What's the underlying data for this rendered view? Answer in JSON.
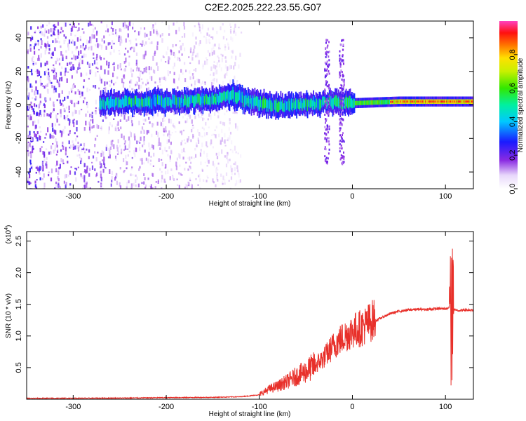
{
  "title": "C2E2.2025.222.23.55.G07",
  "colors": {
    "snr_line": "#e8302a",
    "frame": "#000000",
    "background": "#ffffff"
  },
  "chart_data": [
    {
      "type": "heatmap",
      "title": "C2E2.2025.222.23.55.G07",
      "xlabel": "Height of straight line (km)",
      "ylabel": "Frequency (Hz)",
      "xlim": [
        -350,
        130
      ],
      "ylim": [
        -50,
        50
      ],
      "x_ticks": [
        -300,
        -200,
        -100,
        0,
        100
      ],
      "x_tick_labels": [
        "-300",
        "-200",
        "-100",
        "0",
        "100"
      ],
      "y_ticks": [
        -40,
        -20,
        0,
        20,
        40
      ],
      "y_tick_labels": [
        "-40",
        "-20",
        "0",
        "20",
        "40"
      ],
      "colorbar": {
        "label": "Normalized spectral amplitude",
        "range": [
          0,
          1
        ],
        "ticks": [
          0.0,
          0.2,
          0.4,
          0.6,
          0.8
        ],
        "tick_labels": [
          "0.0",
          "0.2",
          "0.4",
          "0.6",
          "0.8"
        ],
        "colormap": "rainbow (white-violet-blue-cyan-green-yellow-red-magenta)"
      },
      "features": {
        "noise_region_x": [
          -350,
          -120
        ],
        "main_band_center_hz": [
          [
            -270,
            1
          ],
          [
            -200,
            2
          ],
          [
            -150,
            3
          ],
          [
            -130,
            6
          ],
          [
            -110,
            2
          ],
          [
            -90,
            0
          ],
          [
            -70,
            -1
          ],
          [
            -40,
            1
          ],
          [
            -20,
            2
          ],
          [
            0,
            1
          ],
          [
            50,
            2
          ],
          [
            100,
            2
          ],
          [
            130,
            2
          ]
        ],
        "vertical_streaks_x": [
          -28,
          -12
        ],
        "vertical_streak_range_hz": [
          -35,
          40
        ]
      }
    },
    {
      "type": "line",
      "xlabel": "Height of straight line (km)",
      "ylabel": "SNR (10 * v/v)",
      "y_multiplier_label": "(x10",
      "y_multiplier_exponent": "4",
      "xlim": [
        -350,
        130
      ],
      "ylim": [
        0,
        26500
      ],
      "x_ticks": [
        -300,
        -200,
        -100,
        0,
        100
      ],
      "x_tick_labels": [
        "-300",
        "-200",
        "-100",
        "0",
        "100"
      ],
      "y_ticks": [
        5000,
        10000,
        15000,
        20000,
        25000
      ],
      "y_tick_labels": [
        "0.5",
        "1.0",
        "1.5",
        "2.0",
        "2.5"
      ],
      "series": [
        {
          "x": [
            -350,
            -300,
            -250,
            -200,
            -150,
            -120,
            -100,
            -90,
            -80,
            -70,
            -60,
            -50,
            -40,
            -30,
            -20,
            -10,
            0,
            10,
            20,
            30,
            40,
            50,
            60,
            70,
            80,
            90,
            100,
            104,
            106,
            108,
            110,
            115,
            120,
            130
          ],
          "y": [
            150,
            160,
            180,
            250,
            300,
            400,
            700,
            1500,
            2000,
            2700,
            3500,
            4200,
            5200,
            6500,
            8300,
            9500,
            10500,
            11000,
            12000,
            12800,
            13500,
            13900,
            14100,
            14200,
            14200,
            14300,
            14300,
            14500,
            12000,
            14000,
            14200,
            14000,
            14100,
            14100
          ]
        }
      ]
    }
  ]
}
